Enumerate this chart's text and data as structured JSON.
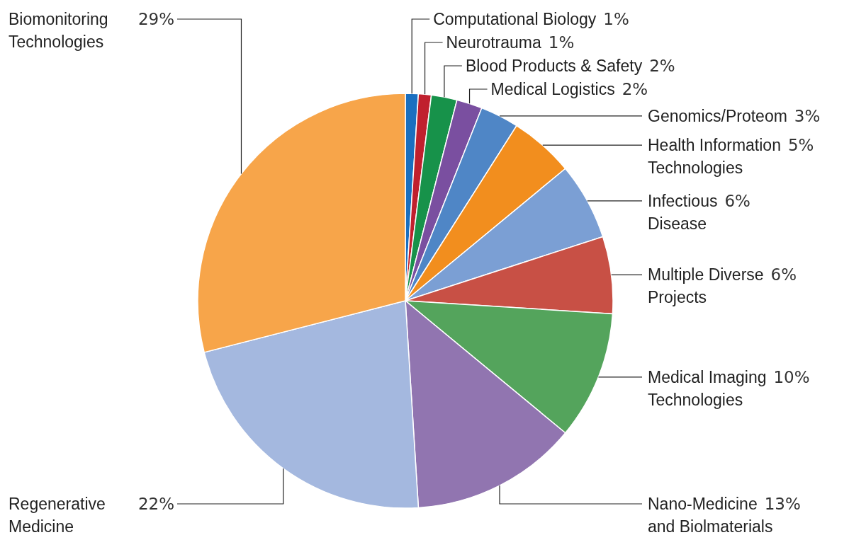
{
  "chart_data": {
    "type": "pie",
    "categories": [
      "Computational Biology",
      "Neurotrauma",
      "Blood Products & Safety",
      "Medical Logistics",
      "Genomics/Proteom",
      "Health Information Technologies",
      "Infectious Disease",
      "Multiple Diverse Projects",
      "Medical Imaging Technologies",
      "Nano-Medicine and Biolmaterials",
      "Regenerative Medicine",
      "Biomonitoring Technologies"
    ],
    "values": [
      1,
      1,
      2,
      2,
      3,
      5,
      6,
      6,
      10,
      13,
      22,
      29
    ],
    "value_labels": [
      "1%",
      "1%",
      "2%",
      "2%",
      "3%",
      "5%",
      "6%",
      "6%",
      "10%",
      "13%",
      "22%",
      "29%"
    ],
    "colors": [
      "#1a6fc0",
      "#c0202e",
      "#17924a",
      "#7a4fa0",
      "#4f86c6",
      "#f28e1e",
      "#7b9fd4",
      "#c85045",
      "#54a45c",
      "#9175b0",
      "#a4b8df",
      "#f7a54a"
    ],
    "legend": false
  }
}
